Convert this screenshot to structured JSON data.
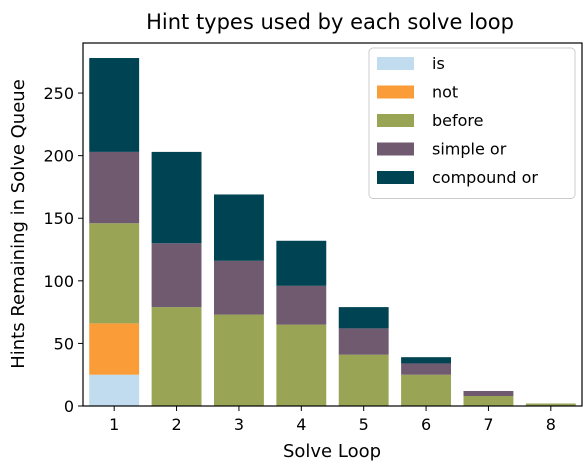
{
  "chart_data": {
    "type": "bar",
    "stacked": true,
    "title": "Hint types used by each solve loop",
    "xlabel": "Solve Loop",
    "ylabel": "Hints Remaining in Solve Queue",
    "categories": [
      "1",
      "2",
      "3",
      "4",
      "5",
      "6",
      "7",
      "8"
    ],
    "ylim": [
      0,
      290
    ],
    "yticks": [
      0,
      50,
      100,
      150,
      200,
      250
    ],
    "grid": false,
    "legend_position": "top-right",
    "series": [
      {
        "name": "is",
        "color": "#c0dcee",
        "values": [
          25,
          0,
          0,
          0,
          0,
          0,
          0,
          0
        ]
      },
      {
        "name": "not",
        "color": "#fa9d38",
        "values": [
          41,
          0,
          0,
          0,
          0,
          0,
          0,
          0
        ]
      },
      {
        "name": "before",
        "color": "#99a555",
        "values": [
          80,
          79,
          73,
          65,
          41,
          25,
          8,
          2
        ]
      },
      {
        "name": "simple or",
        "color": "#6f5a70",
        "values": [
          57,
          51,
          43,
          31,
          21,
          9,
          4,
          0
        ]
      },
      {
        "name": "compound or",
        "color": "#004352",
        "values": [
          75,
          73,
          53,
          36,
          17,
          5,
          0,
          0
        ]
      }
    ]
  }
}
